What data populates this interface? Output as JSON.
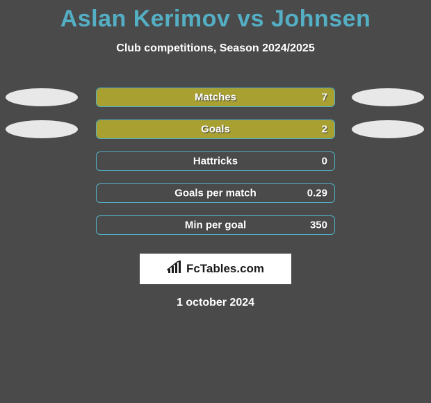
{
  "title": "Aslan Kerimov vs Johnsen",
  "title_color": "#54afc4",
  "subtitle": "Club competitions, Season 2024/2025",
  "background_color": "#4a4a4a",
  "text_color": "#ffffff",
  "bar_border_color": "#54afc4",
  "bar_fill_color": "#a8a030",
  "ellipse_color": "#e8e8e8",
  "stats": [
    {
      "label": "Matches",
      "value": "7",
      "fill_pct": 100,
      "show_ellipses": true
    },
    {
      "label": "Goals",
      "value": "2",
      "fill_pct": 100,
      "show_ellipses": true
    },
    {
      "label": "Hattricks",
      "value": "0",
      "fill_pct": 0,
      "show_ellipses": false
    },
    {
      "label": "Goals per match",
      "value": "0.29",
      "fill_pct": 0,
      "show_ellipses": false
    },
    {
      "label": "Min per goal",
      "value": "350",
      "fill_pct": 0,
      "show_ellipses": false
    }
  ],
  "brand": "FcTables.com",
  "date": "1 october 2024"
}
